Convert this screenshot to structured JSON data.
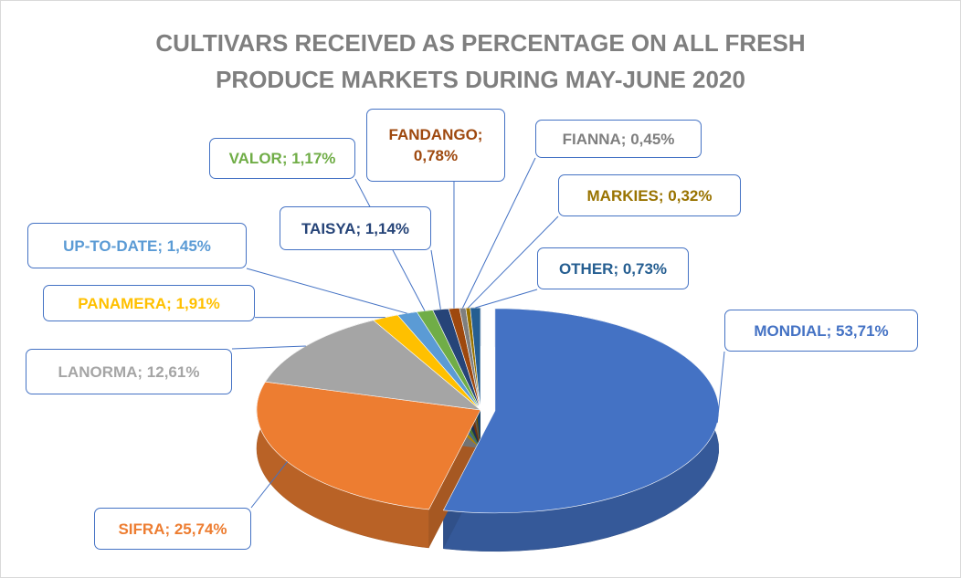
{
  "chart_data": {
    "type": "pie",
    "title": "CULTIVARS RECEIVED AS PERCENTAGE ON ALL FRESH PRODUCE MARKETS DURING MAY-JUNE 2020",
    "values": [
      53.71,
      25.74,
      12.61,
      1.91,
      1.45,
      1.17,
      1.14,
      0.78,
      0.45,
      0.32,
      0.73
    ],
    "value_labels": [
      "MONDIAL; 53,71%",
      "SIFRA; 25,74%",
      "LANORMA; 12,61%",
      "PANAMERA; 1,91%",
      "UP-TO-DATE; 1,45%",
      "VALOR; 1,17%",
      "TAISYA; 1,14%",
      "FANDANGO; 0,78%",
      "FIANNA; 0,45%",
      "MARKIES; 0,32%",
      "OTHER; 0,73%"
    ],
    "colors": [
      "#4472c4",
      "#ed7d31",
      "#a5a5a5",
      "#ffc000",
      "#5b9bd5",
      "#70ad47",
      "#264478",
      "#9e480e",
      "#7f7f7f",
      "#997300",
      "#255e91"
    ]
  }
}
